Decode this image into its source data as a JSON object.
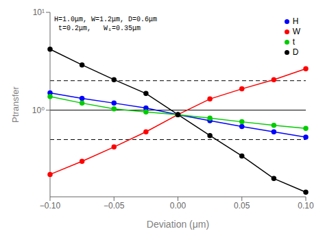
{
  "chart_data": {
    "type": "line",
    "xlabel": "Deviation (μm)",
    "ylabel": "Ptransfer",
    "annotations": [
      "H=1.0μm, W=1.2μm, D=0.6μm",
      " t=0.2μm,   W₁=0.35μm"
    ],
    "x": [
      -0.1,
      -0.075,
      -0.05,
      -0.025,
      0,
      0.025,
      0.05,
      0.075,
      0.1
    ],
    "series": [
      {
        "name": "H",
        "color": "#0000ff",
        "marker": "o",
        "line_style": "solid",
        "values": [
          1.5,
          1.32,
          1.18,
          1.05,
          0.9,
          0.78,
          0.68,
          0.6,
          0.53
        ]
      },
      {
        "name": "W",
        "color": "#ff0000",
        "marker": "o",
        "line_style": "solid",
        "values": [
          0.22,
          0.3,
          0.42,
          0.6,
          0.9,
          1.3,
          1.65,
          2.05,
          2.65
        ]
      },
      {
        "name": "t",
        "color": "#00cc00",
        "marker": "o",
        "line_style": "solid",
        "values": [
          1.38,
          1.18,
          1.03,
          0.96,
          0.9,
          0.83,
          0.76,
          0.7,
          0.65
        ]
      },
      {
        "name": "D",
        "color": "#000000",
        "marker": "o",
        "line_style": "solid",
        "values": [
          4.2,
          2.9,
          2.05,
          1.48,
          0.9,
          0.55,
          0.34,
          0.2,
          0.145
        ]
      }
    ],
    "xlim": [
      -0.1,
      0.1
    ],
    "ylim": [
      0.13,
      10.0
    ],
    "xticks": [
      {
        "value": -0.1,
        "label": "−0.10"
      },
      {
        "value": -0.05,
        "label": "−0.05"
      },
      {
        "value": 0,
        "label": "0.00"
      },
      {
        "value": 0.05,
        "label": "0.05"
      },
      {
        "value": 0.1,
        "label": "0.10"
      }
    ],
    "yticks": [
      {
        "value": 1,
        "label": "10⁰"
      },
      {
        "value": 10,
        "label": "10¹"
      }
    ],
    "log": "y",
    "grid": false,
    "legend": "upper right",
    "hlines": [
      {
        "value": 1.0,
        "color": "#000000",
        "line_style": "solid"
      },
      {
        "value": 2.0,
        "color": "#000000",
        "line_style": "dashed"
      },
      {
        "value": 0.5,
        "color": "#000000",
        "line_style": "dashed"
      }
    ]
  }
}
